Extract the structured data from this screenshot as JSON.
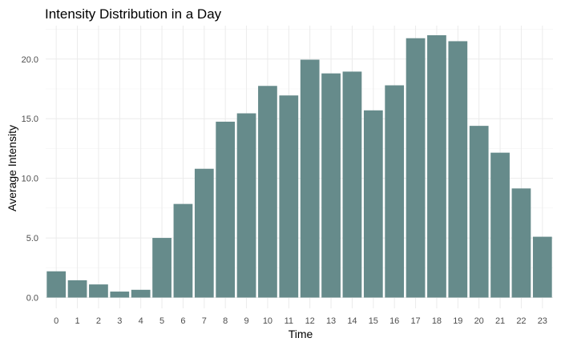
{
  "chart_data": {
    "type": "bar",
    "title": "Intensity Distribution in a Day",
    "xlabel": "Time",
    "ylabel": "Average Intensity",
    "categories": [
      "0",
      "1",
      "2",
      "3",
      "4",
      "5",
      "6",
      "7",
      "8",
      "9",
      "10",
      "11",
      "12",
      "13",
      "14",
      "15",
      "16",
      "17",
      "18",
      "19",
      "20",
      "21",
      "22",
      "23"
    ],
    "values": [
      2.2,
      1.45,
      1.1,
      0.5,
      0.65,
      5.0,
      7.85,
      10.8,
      14.75,
      15.45,
      17.75,
      16.95,
      19.95,
      18.8,
      18.95,
      15.7,
      17.8,
      21.75,
      22.0,
      21.5,
      14.4,
      12.15,
      9.15,
      5.1
    ],
    "ylim": [
      0,
      22.5
    ],
    "yticks": [
      "0.0",
      "5.0",
      "10.0",
      "15.0",
      "20.0"
    ],
    "ytick_values": [
      0,
      5,
      10,
      15,
      20
    ],
    "bar_color": "#668b8b",
    "grid": true,
    "legend": "none"
  }
}
